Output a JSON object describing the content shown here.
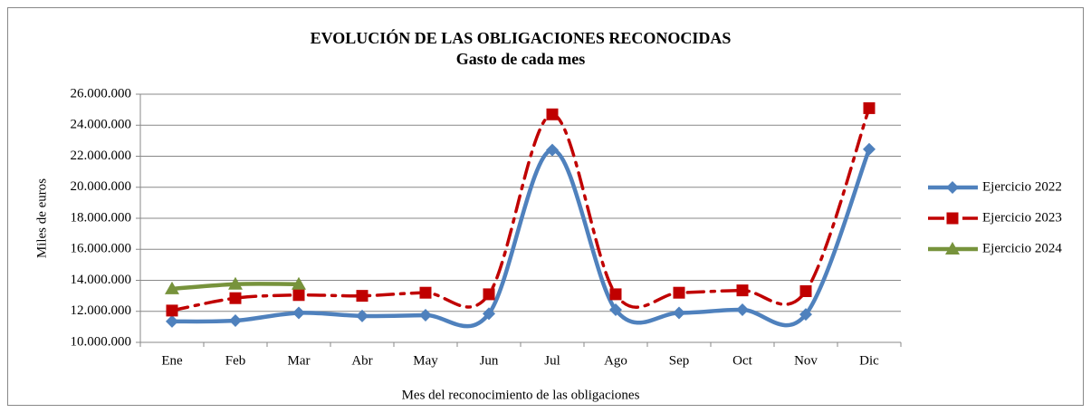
{
  "chart_data": {
    "type": "line",
    "title": "EVOLUCIÓN DE LAS OBLIGACIONES RECONOCIDAS",
    "subtitle": "Gasto de cada mes",
    "x_label": "Mes del reconocimiento de las obligaciones",
    "y_label": "Miles de euros",
    "categories": [
      "Ene",
      "Feb",
      "Mar",
      "Abr",
      "May",
      "Jun",
      "Jul",
      "Ago",
      "Sep",
      "Oct",
      "Nov",
      "Dic"
    ],
    "series": [
      {
        "name": "Ejercicio 2022",
        "color": "#4f81bd",
        "marker": "diamond",
        "dash": "solid",
        "values": [
          11350000,
          11400000,
          11900000,
          11700000,
          11750000,
          11850000,
          22400000,
          12100000,
          11900000,
          12100000,
          11800000,
          22450000
        ]
      },
      {
        "name": "Ejercicio 2023",
        "color": "#c00000",
        "marker": "square",
        "dash": "dashdot",
        "values": [
          12050000,
          12850000,
          13050000,
          13000000,
          13200000,
          13100000,
          24700000,
          13100000,
          13200000,
          13350000,
          13300000,
          25100000
        ]
      },
      {
        "name": "Ejercicio 2024",
        "color": "#77933c",
        "marker": "triangle",
        "dash": "solid",
        "values": [
          13450000,
          13750000,
          13750000,
          null,
          null,
          null,
          null,
          null,
          null,
          null,
          null,
          null
        ]
      }
    ],
    "ylim": [
      10000000,
      26000000
    ],
    "yticks": [
      {
        "value": 10000000,
        "label": "10.000.000"
      },
      {
        "value": 12000000,
        "label": "12.000.000"
      },
      {
        "value": 14000000,
        "label": "14.000.000"
      },
      {
        "value": 16000000,
        "label": "16.000.000"
      },
      {
        "value": 18000000,
        "label": "18.000.000"
      },
      {
        "value": 20000000,
        "label": "20.000.000"
      },
      {
        "value": 22000000,
        "label": "22.000.000"
      },
      {
        "value": 24000000,
        "label": "24.000.000"
      },
      {
        "value": 26000000,
        "label": "26.000.000"
      }
    ],
    "grid": true,
    "smooth": true,
    "legend": "right"
  }
}
